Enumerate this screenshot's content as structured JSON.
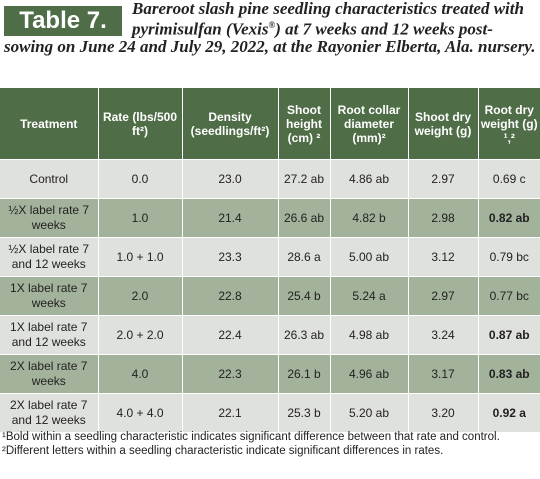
{
  "table_badge": "Table 7.",
  "caption": {
    "text_before_reg": "Bareroot slash pine seedling characteristics treated with pyrimisulfan (Vexis",
    "reg_mark": "®",
    "text_after_reg": ") at 7 weeks and 12 weeks post-sowing on June 24 and July 29, 2022, at the Rayonier Elberta, Ala. nursery."
  },
  "table": {
    "headers": [
      "Treatment",
      "Rate (lbs/500 ft²)",
      "Density (seedlings/ft²)",
      "Shoot height (cm) ²",
      "Root collar diameter (mm)²",
      "Shoot dry weight (g)",
      "Root dry weight (g) ¹,²"
    ],
    "rows": [
      {
        "treatment": "Control",
        "rate": "0.0",
        "density": "23.0",
        "shoot_height": "27.2 ab",
        "rcd": "4.86 ab",
        "shoot_dw": "2.97",
        "root_dw": "0.69 c"
      },
      {
        "treatment": "½X label rate 7 weeks",
        "rate": "1.0",
        "density": "21.4",
        "shoot_height": "26.6 ab",
        "rcd": "4.82 b",
        "shoot_dw": "2.98",
        "root_dw": "0.82 ab"
      },
      {
        "treatment": "½X label rate 7 and 12 weeks",
        "rate": "1.0 + 1.0",
        "density": "23.3",
        "shoot_height": "28.6 a",
        "rcd": "5.00 ab",
        "shoot_dw": "3.12",
        "root_dw": "0.79 bc"
      },
      {
        "treatment": "1X label rate 7 weeks",
        "rate": "2.0",
        "density": "22.8",
        "shoot_height": "25.4 b",
        "rcd": "5.24 a",
        "shoot_dw": "2.97",
        "root_dw": "0.77 bc"
      },
      {
        "treatment": "1X label rate 7 and 12 weeks",
        "rate": "2.0 + 2.0",
        "density": "22.4",
        "shoot_height": "26.3 ab",
        "rcd": "4.98 ab",
        "shoot_dw": "3.24",
        "root_dw": "0.87 ab"
      },
      {
        "treatment": "2X label rate 7 weeks",
        "rate": "4.0",
        "density": "22.3",
        "shoot_height": "26.1 b",
        "rcd": "4.96 ab",
        "shoot_dw": "3.17",
        "root_dw": "0.83 ab"
      },
      {
        "treatment": "2X label rate 7 and 12 weeks",
        "rate": "4.0 + 4.0",
        "density": "22.1",
        "shoot_height": "25.3 b",
        "rcd": "5.20 ab",
        "shoot_dw": "3.20",
        "root_dw": "0.92 a"
      }
    ]
  },
  "footnotes": [
    "¹Bold within a seedling characteristic indicates significant difference between that rate and control.",
    "²Different letters within a seedling characteristic indicate significant differences in rates."
  ],
  "colors": {
    "header_green": "#4f6d47",
    "row_light": "#dfe1dc",
    "row_dark": "#a3b29b"
  }
}
